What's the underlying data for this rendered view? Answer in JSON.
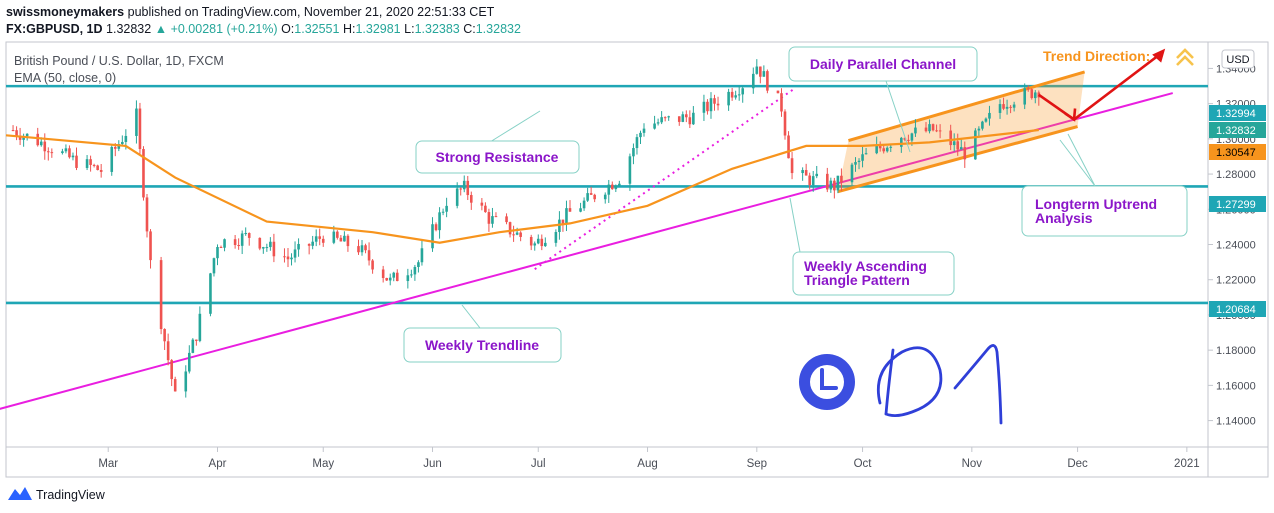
{
  "header": {
    "user": "swissmoneymakers",
    "published": "published on TradingView.com, November 21, 2020 22:51:33 CET",
    "symbol": "FX:GBPUSD, 1D",
    "last": "1.32832",
    "arrow": "▲",
    "change": "+0.00281 (+0.21%)",
    "o_label": "O:",
    "o": "1.32551",
    "h_label": "H:",
    "h": "1.32981",
    "l_label": "L:",
    "l": "1.32383",
    "c_label": "C:",
    "c": "1.32832"
  },
  "legend": {
    "instrument": "British Pound / U.S. Dollar, 1D, FXCM",
    "indicator": "EMA (50, close, 0)"
  },
  "currency_button": "USD",
  "footer": {
    "brand": "TradingView"
  },
  "annotations": {
    "strong_resistance": "Strong Resistance",
    "daily_channel": "Daily Parallel Channel",
    "trend_direction": "Trend Direction:",
    "longterm": [
      "Longterm Uptrend",
      "Analysis"
    ],
    "weekly_triangle": [
      "Weekly Ascending",
      "Triangle Pattern"
    ],
    "weekly_trendline": "Weekly Trendline"
  },
  "colors": {
    "up": "#26a69a",
    "down": "#ef5350",
    "ema": "#f7941d",
    "level": "#1fa6b5",
    "trendline": "#e91ee0",
    "annot_text": "#8b16c9",
    "arrow": "#e01414",
    "clock": "#3b4ee0"
  },
  "chart_data": {
    "type": "candlestick",
    "symbol": "FX:GBPUSD",
    "interval": "1D",
    "x_ticks": [
      "Mar",
      "Apr",
      "May",
      "Jun",
      "Jul",
      "Aug",
      "Sep",
      "Oct",
      "Nov",
      "Dec",
      "2021"
    ],
    "y_ticks": [
      "1.34000",
      "1.32000",
      "1.30000",
      "1.28000",
      "1.26000",
      "1.24000",
      "1.22000",
      "1.20000",
      "1.18000",
      "1.16000",
      "1.14000"
    ],
    "ylim": [
      1.125,
      1.355
    ],
    "price_labels": [
      {
        "value": "1.32994",
        "color": "#1fa6b5"
      },
      {
        "value": "1.32832",
        "color": "#26a69a"
      },
      {
        "value": "1.30547",
        "color": "#f7941d"
      },
      {
        "value": "1.27299",
        "color": "#1fa6b5"
      },
      {
        "value": "1.20684",
        "color": "#1fa6b5"
      }
    ],
    "horizontal_levels": [
      1.32994,
      1.27299,
      1.20684
    ],
    "price_path": [
      [
        "2020-02-03",
        1.305
      ],
      [
        "2020-02-12",
        1.297
      ],
      [
        "2020-02-20",
        1.288
      ],
      [
        "2020-02-28",
        1.282
      ],
      [
        "2020-03-09",
        1.313
      ],
      [
        "2020-03-13",
        1.229
      ],
      [
        "2020-03-20",
        1.153
      ],
      [
        "2020-03-26",
        1.189
      ],
      [
        "2020-04-01",
        1.241
      ],
      [
        "2020-04-10",
        1.245
      ],
      [
        "2020-04-21",
        1.232
      ],
      [
        "2020-05-01",
        1.245
      ],
      [
        "2020-05-11",
        1.238
      ],
      [
        "2020-05-20",
        1.219
      ],
      [
        "2020-05-28",
        1.23
      ],
      [
        "2020-06-05",
        1.265
      ],
      [
        "2020-06-10",
        1.272
      ],
      [
        "2020-06-17",
        1.255
      ],
      [
        "2020-06-30",
        1.24
      ],
      [
        "2020-07-10",
        1.258
      ],
      [
        "2020-07-24",
        1.278
      ],
      [
        "2020-07-31",
        1.308
      ],
      [
        "2020-08-14",
        1.313
      ],
      [
        "2020-08-28",
        1.331
      ],
      [
        "2020-09-01",
        1.342
      ],
      [
        "2020-09-08",
        1.318
      ],
      [
        "2020-09-11",
        1.28
      ],
      [
        "2020-09-23",
        1.273
      ],
      [
        "2020-10-01",
        1.289
      ],
      [
        "2020-10-12",
        1.302
      ],
      [
        "2020-10-21",
        1.305
      ],
      [
        "2020-10-30",
        1.292
      ],
      [
        "2020-11-09",
        1.32
      ],
      [
        "2020-11-20",
        1.328
      ]
    ],
    "series": [
      {
        "name": "EMA (50, close, 0)",
        "values": [
          [
            "2020-02-01",
            1.302
          ],
          [
            "2020-03-06",
            1.296
          ],
          [
            "2020-03-20",
            1.278
          ],
          [
            "2020-04-15",
            1.253
          ],
          [
            "2020-05-15",
            1.247
          ],
          [
            "2020-06-03",
            1.241
          ],
          [
            "2020-06-20",
            1.247
          ],
          [
            "2020-07-10",
            1.252
          ],
          [
            "2020-08-01",
            1.262
          ],
          [
            "2020-08-25",
            1.283
          ],
          [
            "2020-09-15",
            1.296
          ],
          [
            "2020-10-01",
            1.296
          ],
          [
            "2020-10-20",
            1.298
          ],
          [
            "2020-11-20",
            1.305
          ]
        ]
      }
    ],
    "drawings": {
      "weekly_trendline": [
        [
          "2020-01-29",
          1.146
        ],
        [
          "2020-12-28",
          1.326
        ]
      ],
      "triangle_line": [
        [
          "2020-06-30",
          1.226
        ],
        [
          "2020-09-12",
          1.329
        ]
      ],
      "channel_upper": [
        [
          "2020-09-27",
          1.299
        ],
        [
          "2020-12-03",
          1.338
        ]
      ],
      "channel_lower": [
        [
          "2020-09-24",
          1.27
        ],
        [
          "2020-12-01",
          1.307
        ]
      ],
      "projection": [
        [
          "2020-11-20",
          1.325
        ],
        [
          "2020-11-30",
          1.311
        ],
        [
          "2020-12-25",
          1.349
        ]
      ]
    }
  }
}
